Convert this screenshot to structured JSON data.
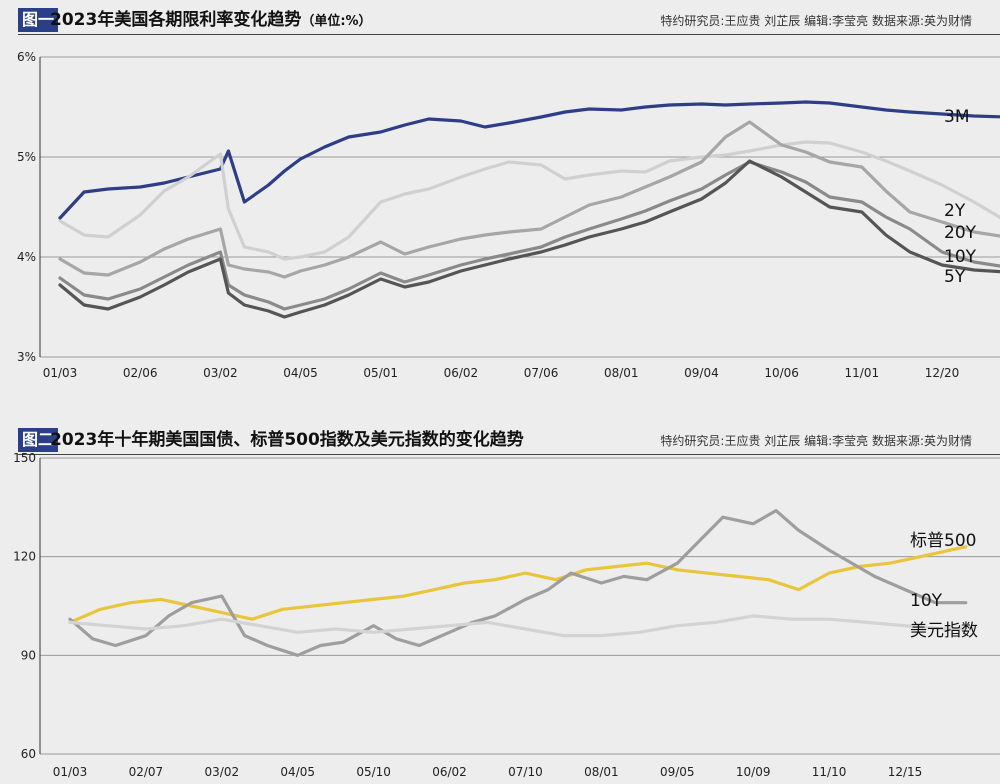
{
  "figure1": {
    "tag": "图一",
    "title": "2023年美国各期限利率变化趋势",
    "title_suffix": "（单位:%）",
    "credits": "特约研究员:王应贵 刘芷辰   编辑:李莹亮   数据来源:英为财情"
  },
  "figure2": {
    "tag": "图二",
    "title": "2023年十年期美国国债、标普500指数及美元指数的变化趋势",
    "credits": "特约研究员:王应贵 刘芷辰   编辑:李莹亮   数据来源:英为财情"
  },
  "chart_data": [
    {
      "type": "line",
      "title": "2023年美国各期限利率变化趋势（单位:%）",
      "y_unit": "%",
      "ylim": [
        3,
        6
      ],
      "y_ticks": [
        "3%",
        "4%",
        "5%",
        "6%"
      ],
      "y_tick_values": [
        3,
        4,
        5,
        6
      ],
      "x_ticks": [
        "01/03",
        "02/06",
        "03/02",
        "04/05",
        "05/01",
        "06/02",
        "07/06",
        "08/01",
        "09/04",
        "10/06",
        "11/01",
        "12/20"
      ],
      "grid": "horizontal",
      "colors": {
        "3M": "#2e3d86",
        "2Y": "#d0d0d0",
        "20Y": "#a6a6a6",
        "10Y": "#8a8a8a",
        "5Y": "#555555"
      },
      "series": [
        {
          "name": "3M",
          "x": [
            0,
            0.3,
            0.6,
            1,
            1.3,
            1.6,
            2,
            2.1,
            2.3,
            2.6,
            2.8,
            3,
            3.3,
            3.6,
            4,
            4.3,
            4.6,
            5,
            5.3,
            5.6,
            6,
            6.3,
            6.6,
            7,
            7.3,
            7.6,
            8,
            8.3,
            8.6,
            9,
            9.3,
            9.6,
            10,
            10.3,
            10.6,
            11,
            11.4,
            11.8
          ],
          "values": [
            4.39,
            4.65,
            4.68,
            4.7,
            4.74,
            4.8,
            4.88,
            5.06,
            4.55,
            4.72,
            4.86,
            4.98,
            5.1,
            5.2,
            5.25,
            5.32,
            5.38,
            5.36,
            5.3,
            5.34,
            5.4,
            5.45,
            5.48,
            5.47,
            5.5,
            5.52,
            5.53,
            5.52,
            5.53,
            5.54,
            5.55,
            5.54,
            5.5,
            5.47,
            5.45,
            5.43,
            5.41,
            5.4
          ]
        },
        {
          "name": "2Y",
          "x": [
            0,
            0.3,
            0.6,
            1,
            1.3,
            1.6,
            2,
            2.1,
            2.3,
            2.6,
            2.8,
            3,
            3.3,
            3.6,
            4,
            4.3,
            4.6,
            5,
            5.3,
            5.6,
            6,
            6.3,
            6.6,
            7,
            7.3,
            7.6,
            8,
            8.3,
            8.6,
            9,
            9.3,
            9.6,
            10,
            10.3,
            10.6,
            11,
            11.4,
            11.8
          ],
          "values": [
            4.36,
            4.22,
            4.2,
            4.42,
            4.66,
            4.8,
            5.03,
            4.48,
            4.1,
            4.05,
            3.98,
            4.0,
            4.05,
            4.2,
            4.55,
            4.63,
            4.68,
            4.8,
            4.88,
            4.95,
            4.92,
            4.78,
            4.82,
            4.86,
            4.85,
            4.96,
            5.0,
            5.02,
            5.06,
            5.12,
            5.15,
            5.14,
            5.05,
            4.96,
            4.86,
            4.72,
            4.55,
            4.36
          ]
        },
        {
          "name": "20Y",
          "x": [
            0,
            0.3,
            0.6,
            1,
            1.3,
            1.6,
            2,
            2.1,
            2.3,
            2.6,
            2.8,
            3,
            3.3,
            3.6,
            4,
            4.3,
            4.6,
            5,
            5.3,
            5.6,
            6,
            6.3,
            6.6,
            7,
            7.3,
            7.6,
            8,
            8.3,
            8.6,
            9,
            9.3,
            9.6,
            10,
            10.3,
            10.6,
            11,
            11.4,
            11.8
          ],
          "values": [
            3.98,
            3.84,
            3.82,
            3.95,
            4.08,
            4.18,
            4.28,
            3.92,
            3.88,
            3.85,
            3.8,
            3.86,
            3.92,
            4.0,
            4.15,
            4.03,
            4.1,
            4.18,
            4.22,
            4.25,
            4.28,
            4.4,
            4.52,
            4.6,
            4.7,
            4.8,
            4.95,
            5.2,
            5.35,
            5.12,
            5.05,
            4.95,
            4.9,
            4.66,
            4.45,
            4.35,
            4.25,
            4.2
          ]
        },
        {
          "name": "10Y",
          "x": [
            0,
            0.3,
            0.6,
            1,
            1.3,
            1.6,
            2,
            2.1,
            2.3,
            2.6,
            2.8,
            3,
            3.3,
            3.6,
            4,
            4.3,
            4.6,
            5,
            5.3,
            5.6,
            6,
            6.3,
            6.6,
            7,
            7.3,
            7.6,
            8,
            8.3,
            8.6,
            9,
            9.3,
            9.6,
            10,
            10.3,
            10.6,
            11,
            11.4,
            11.8
          ],
          "values": [
            3.79,
            3.62,
            3.58,
            3.68,
            3.8,
            3.92,
            4.05,
            3.72,
            3.62,
            3.55,
            3.48,
            3.52,
            3.58,
            3.68,
            3.84,
            3.75,
            3.82,
            3.92,
            3.98,
            4.03,
            4.1,
            4.2,
            4.28,
            4.38,
            4.46,
            4.56,
            4.68,
            4.82,
            4.95,
            4.85,
            4.75,
            4.6,
            4.55,
            4.4,
            4.28,
            4.05,
            3.95,
            3.9
          ]
        },
        {
          "name": "5Y",
          "x": [
            0,
            0.3,
            0.6,
            1,
            1.3,
            1.6,
            2,
            2.1,
            2.3,
            2.6,
            2.8,
            3,
            3.3,
            3.6,
            4,
            4.3,
            4.6,
            5,
            5.3,
            5.6,
            6,
            6.3,
            6.6,
            7,
            7.3,
            7.6,
            8,
            8.3,
            8.6,
            9,
            9.3,
            9.6,
            10,
            10.3,
            10.6,
            11,
            11.4,
            11.8
          ],
          "values": [
            3.72,
            3.52,
            3.48,
            3.6,
            3.72,
            3.85,
            3.98,
            3.64,
            3.52,
            3.46,
            3.4,
            3.45,
            3.52,
            3.62,
            3.78,
            3.7,
            3.75,
            3.86,
            3.92,
            3.98,
            4.05,
            4.12,
            4.2,
            4.28,
            4.35,
            4.45,
            4.58,
            4.74,
            4.96,
            4.8,
            4.65,
            4.5,
            4.45,
            4.22,
            4.05,
            3.92,
            3.87,
            3.85
          ]
        }
      ]
    },
    {
      "type": "line",
      "title": "2023年十年期美国国债、标普500指数及美元指数的变化趋势",
      "ylim": [
        60,
        150
      ],
      "y_ticks": [
        "60",
        "90",
        "120",
        "150"
      ],
      "y_tick_values": [
        60,
        90,
        120,
        150
      ],
      "x_ticks": [
        "01/03",
        "02/07",
        "03/02",
        "04/05",
        "05/10",
        "06/02",
        "07/10",
        "08/01",
        "09/05",
        "10/09",
        "11/10",
        "12/15"
      ],
      "grid": "horizontal",
      "colors": {
        "标普500": "#e8c53a",
        "10Y": "#9e9e9e",
        "美元指数": "#d3d3d3"
      },
      "series": [
        {
          "name": "标普500",
          "x": [
            0,
            0.4,
            0.8,
            1.2,
            1.6,
            2,
            2.4,
            2.8,
            3.2,
            3.6,
            4,
            4.4,
            4.8,
            5.2,
            5.6,
            6,
            6.4,
            6.8,
            7.2,
            7.6,
            8,
            8.4,
            8.8,
            9.2,
            9.6,
            10,
            10.4,
            10.8,
            11.2,
            11.6,
            11.8
          ],
          "values": [
            100,
            104,
            106,
            107,
            105,
            103,
            101,
            104,
            105,
            106,
            107,
            108,
            110,
            112,
            113,
            115,
            113,
            116,
            117,
            118,
            116,
            115,
            114,
            113,
            110,
            115,
            117,
            118,
            120,
            122,
            123
          ]
        },
        {
          "name": "10Y",
          "x": [
            0,
            0.3,
            0.6,
            1,
            1.3,
            1.6,
            2,
            2.3,
            2.6,
            3,
            3.3,
            3.6,
            4,
            4.3,
            4.6,
            5,
            5.3,
            5.6,
            6,
            6.3,
            6.6,
            7,
            7.3,
            7.6,
            8,
            8.3,
            8.6,
            9,
            9.3,
            9.6,
            10,
            10.3,
            10.6,
            11,
            11.4,
            11.8
          ],
          "values": [
            101,
            95,
            93,
            96,
            102,
            106,
            108,
            96,
            93,
            90,
            93,
            94,
            99,
            95,
            93,
            97,
            100,
            102,
            107,
            110,
            115,
            112,
            114,
            113,
            118,
            125,
            132,
            130,
            134,
            128,
            122,
            118,
            114,
            110,
            106,
            106
          ]
        },
        {
          "name": "美元指数",
          "x": [
            0,
            0.5,
            1,
            1.5,
            2,
            2.5,
            3,
            3.5,
            4,
            4.5,
            5,
            5.5,
            6,
            6.5,
            7,
            7.5,
            8,
            8.5,
            9,
            9.5,
            10,
            10.5,
            11,
            11.5,
            11.8
          ],
          "values": [
            100,
            99,
            98,
            99,
            101,
            99,
            97,
            98,
            97,
            98,
            99,
            100,
            98,
            96,
            96,
            97,
            99,
            100,
            102,
            101,
            101,
            100,
            99,
            98,
            98
          ]
        }
      ]
    }
  ]
}
